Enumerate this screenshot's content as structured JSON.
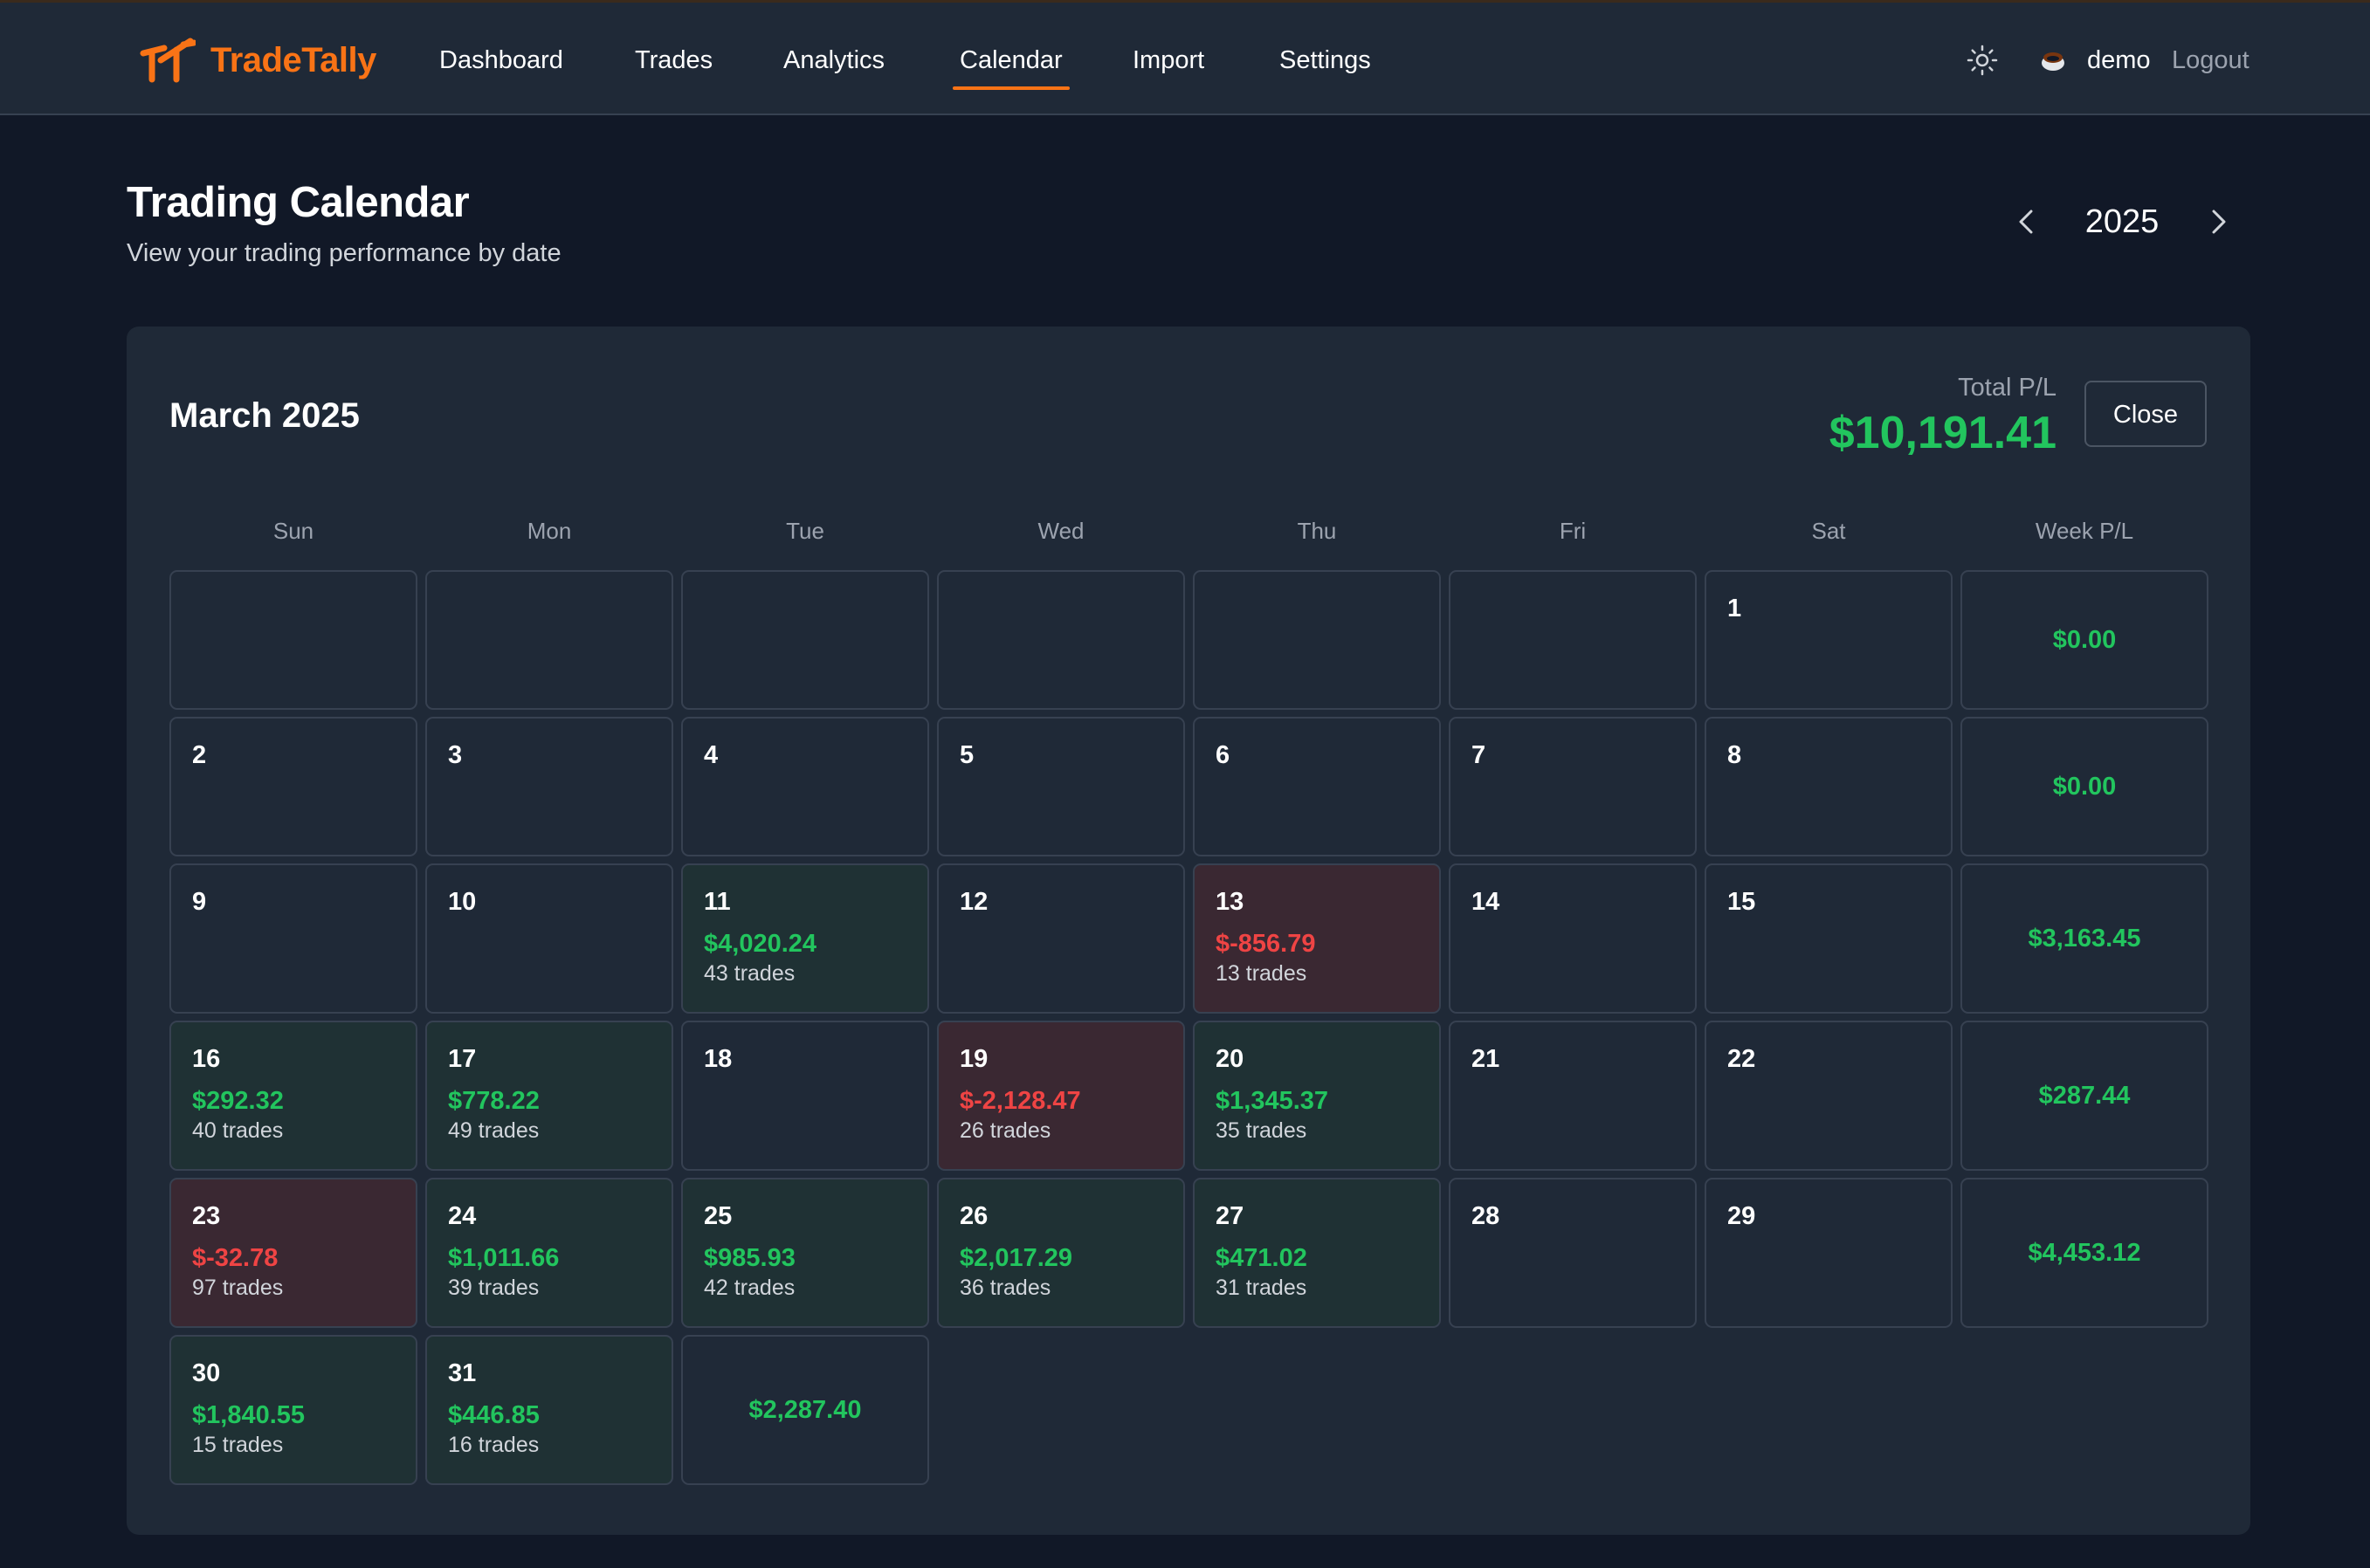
{
  "nav": {
    "brand": "TradeTally",
    "items": [
      "Dashboard",
      "Trades",
      "Analytics",
      "Calendar",
      "Import",
      "Settings"
    ],
    "active": "Calendar",
    "user": "demo",
    "logout": "Logout",
    "theme_icon": "sun-icon",
    "user_icon": "user-avatar-icon"
  },
  "header": {
    "title": "Trading Calendar",
    "subtitle": "View your trading performance by date",
    "year": "2025"
  },
  "calendar": {
    "month_title": "March 2025",
    "total_label": "Total P/L",
    "total_value": "$10,191.41",
    "close_label": "Close",
    "weekdays": [
      "Sun",
      "Mon",
      "Tue",
      "Wed",
      "Thu",
      "Fri",
      "Sat",
      "Week P/L"
    ],
    "weeks": [
      {
        "days": [
          null,
          null,
          null,
          null,
          null,
          null,
          {
            "day": "1"
          }
        ],
        "week_pl": "$0.00"
      },
      {
        "days": [
          {
            "day": "2"
          },
          {
            "day": "3"
          },
          {
            "day": "4"
          },
          {
            "day": "5"
          },
          {
            "day": "6"
          },
          {
            "day": "7"
          },
          {
            "day": "8"
          }
        ],
        "week_pl": "$0.00"
      },
      {
        "days": [
          {
            "day": "9"
          },
          {
            "day": "10"
          },
          {
            "day": "11",
            "pnl": "$4,020.24",
            "trades": "43 trades",
            "status": "pos"
          },
          {
            "day": "12"
          },
          {
            "day": "13",
            "pnl": "$-856.79",
            "trades": "13 trades",
            "status": "neg"
          },
          {
            "day": "14"
          },
          {
            "day": "15"
          }
        ],
        "week_pl": "$3,163.45"
      },
      {
        "days": [
          {
            "day": "16",
            "pnl": "$292.32",
            "trades": "40 trades",
            "status": "pos"
          },
          {
            "day": "17",
            "pnl": "$778.22",
            "trades": "49 trades",
            "status": "pos"
          },
          {
            "day": "18"
          },
          {
            "day": "19",
            "pnl": "$-2,128.47",
            "trades": "26 trades",
            "status": "neg"
          },
          {
            "day": "20",
            "pnl": "$1,345.37",
            "trades": "35 trades",
            "status": "pos"
          },
          {
            "day": "21"
          },
          {
            "day": "22"
          }
        ],
        "week_pl": "$287.44"
      },
      {
        "days": [
          {
            "day": "23",
            "pnl": "$-32.78",
            "trades": "97 trades",
            "status": "neg"
          },
          {
            "day": "24",
            "pnl": "$1,011.66",
            "trades": "39 trades",
            "status": "pos"
          },
          {
            "day": "25",
            "pnl": "$985.93",
            "trades": "42 trades",
            "status": "pos"
          },
          {
            "day": "26",
            "pnl": "$2,017.29",
            "trades": "36 trades",
            "status": "pos"
          },
          {
            "day": "27",
            "pnl": "$471.02",
            "trades": "31 trades",
            "status": "pos"
          },
          {
            "day": "28"
          },
          {
            "day": "29"
          }
        ],
        "week_pl": "$4,453.12"
      },
      {
        "days": [
          {
            "day": "30",
            "pnl": "$1,840.55",
            "trades": "15 trades",
            "status": "pos"
          },
          {
            "day": "31",
            "pnl": "$446.85",
            "trades": "16 trades",
            "status": "pos"
          }
        ],
        "week_pl": "$2,287.40"
      }
    ]
  },
  "colors": {
    "accent": "#f97316",
    "profit": "#22c55e",
    "loss": "#ef4444",
    "background": "#111827",
    "panel": "#1f2937"
  }
}
